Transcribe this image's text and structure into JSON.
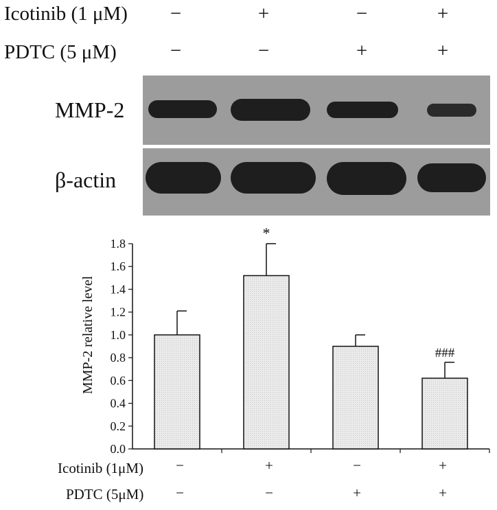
{
  "treatments_top": {
    "rows": [
      {
        "label": "Icotinib (1 μM)",
        "signs": [
          "−",
          "+",
          "−",
          "+"
        ]
      },
      {
        "label": "PDTC (5 μM)",
        "signs": [
          "−",
          "−",
          "+",
          "+"
        ]
      }
    ]
  },
  "western_blot": {
    "panels": [
      {
        "label": "MMP-2",
        "band_intensity": [
          0.9,
          1.0,
          0.85,
          0.6
        ]
      },
      {
        "label": "β-actin",
        "band_intensity": [
          1.0,
          1.0,
          1.0,
          0.95
        ]
      }
    ]
  },
  "treatments_bottom": {
    "rows": [
      {
        "label": "Icotinib (1μM)",
        "signs": [
          "−",
          "+",
          "−",
          "+"
        ]
      },
      {
        "label": "PDTC (5μM)",
        "signs": [
          "−",
          "−",
          "+",
          "+"
        ]
      }
    ]
  },
  "chart_data": {
    "type": "bar",
    "ylabel": "MMP-2 relative level",
    "ylim": [
      0,
      1.8
    ],
    "yticks": [
      "0.0",
      "0.2",
      "0.4",
      "0.6",
      "0.8",
      "1.0",
      "1.2",
      "1.4",
      "1.6",
      "1.8"
    ],
    "values": [
      1.0,
      1.52,
      0.9,
      0.62
    ],
    "errors": [
      0.21,
      0.28,
      0.1,
      0.14
    ],
    "annotations": [
      "",
      "*",
      "",
      "###"
    ],
    "bar_fill": "#ebebeb",
    "grid": false
  }
}
